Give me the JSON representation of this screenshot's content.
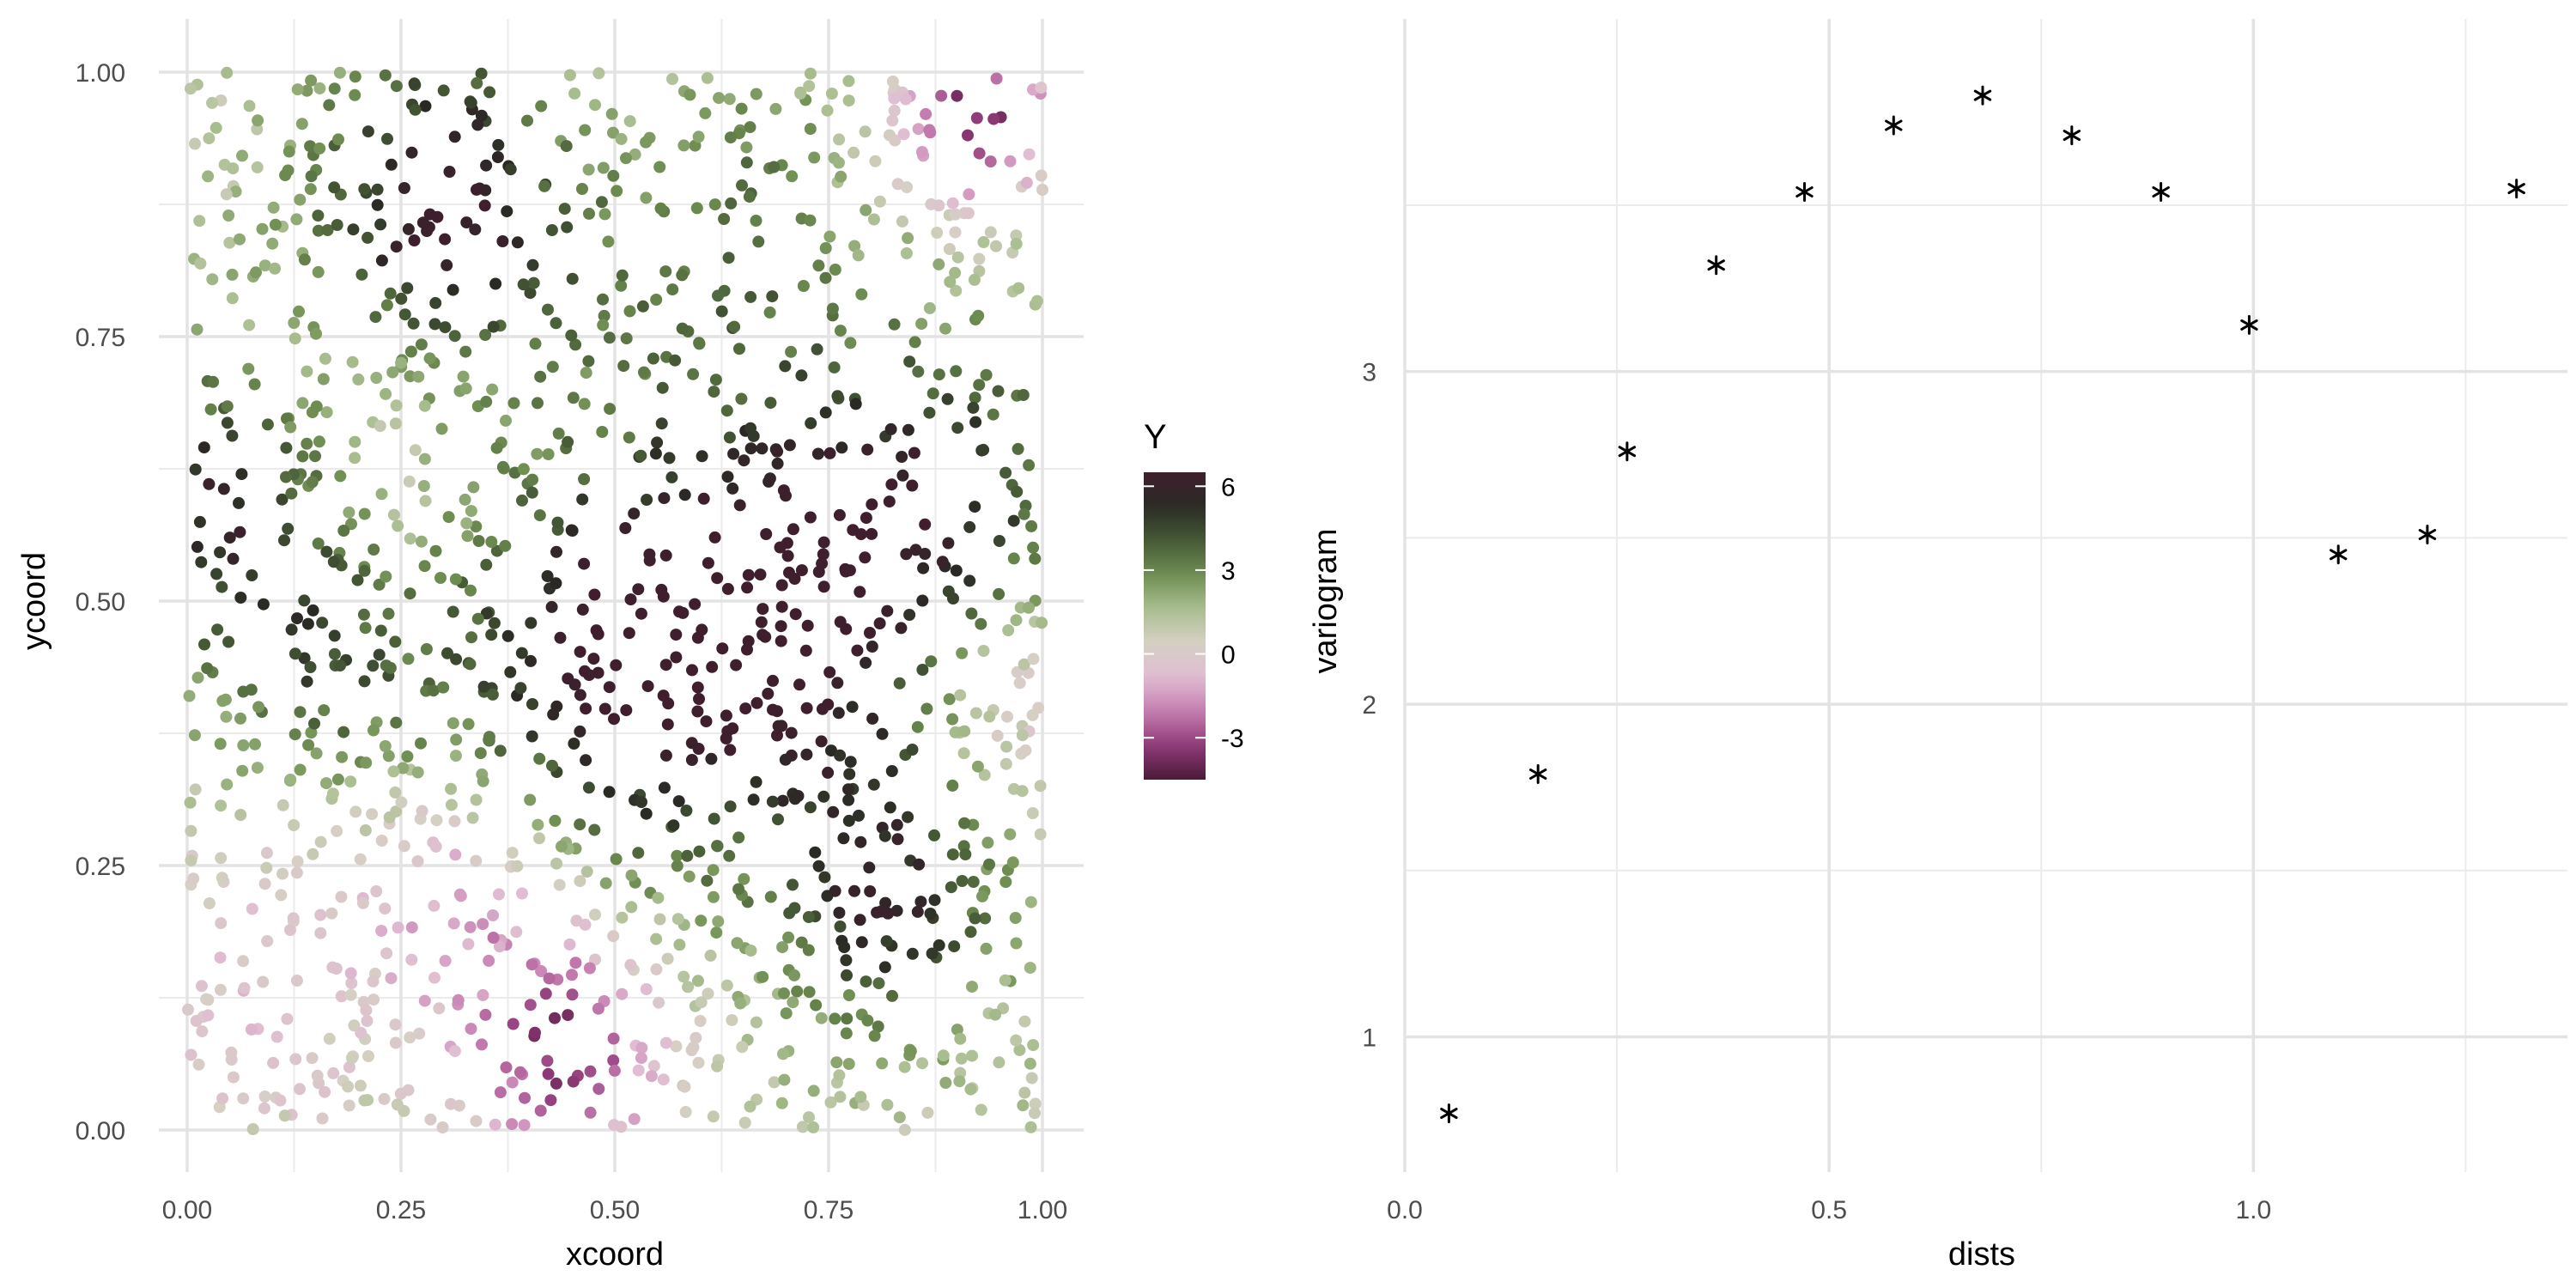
{
  "chart_data": [
    {
      "type": "scatter",
      "title": "",
      "xlabel": "xcoord",
      "ylabel": "ycoord",
      "xlim": [
        0,
        1
      ],
      "ylim": [
        0,
        1
      ],
      "xticks": [
        "0.00",
        "0.25",
        "0.50",
        "0.75",
        "1.00"
      ],
      "yticks": [
        "0.00",
        "0.25",
        "0.50",
        "0.75",
        "1.00"
      ],
      "grid": true,
      "color_variable": "Y",
      "colorbar": {
        "title": "Y",
        "range": [
          -4.5,
          6.5
        ],
        "ticks": [
          "6",
          "3",
          "0",
          "-3"
        ],
        "tick_values": [
          6,
          3,
          0,
          -3
        ],
        "colors": [
          "#4a1a38",
          "#8f3a78",
          "#c57db0",
          "#e0bdd2",
          "#d6d0c4",
          "#a9be90",
          "#6f8e52",
          "#465a36",
          "#2a2a25",
          "#3f1f2e"
        ],
        "placement": "right"
      },
      "field": {
        "description_points": 1500,
        "seed": 7,
        "hotspots": [
          {
            "x": 0.5,
            "y": 0.44,
            "r": 0.14,
            "value": 5.5
          },
          {
            "x": 0.72,
            "y": 0.5,
            "r": 0.13,
            "value": 5.0
          },
          {
            "x": 0.3,
            "y": 0.88,
            "r": 0.11,
            "value": 5.5
          },
          {
            "x": 0.82,
            "y": 0.22,
            "r": 0.09,
            "value": 4.5
          },
          {
            "x": 0.05,
            "y": 0.6,
            "r": 0.09,
            "value": 4.5
          },
          {
            "x": 0.9,
            "y": 0.6,
            "r": 0.11,
            "value": 3.5
          },
          {
            "x": 0.62,
            "y": 0.85,
            "r": 0.12,
            "value": 2.5
          },
          {
            "x": 0.15,
            "y": 0.45,
            "r": 0.1,
            "value": 3.0
          },
          {
            "x": 0.92,
            "y": 0.96,
            "r": 0.06,
            "value": -5.0
          },
          {
            "x": 0.44,
            "y": 0.08,
            "r": 0.08,
            "value": -4.5
          },
          {
            "x": 0.33,
            "y": 0.24,
            "r": 0.09,
            "value": -2.5
          },
          {
            "x": 0.2,
            "y": 0.62,
            "r": 0.09,
            "value": -1.5
          },
          {
            "x": 0.95,
            "y": 0.42,
            "r": 0.08,
            "value": -2.0
          },
          {
            "x": 0.08,
            "y": 0.15,
            "r": 0.12,
            "value": -1.5
          },
          {
            "x": 0.48,
            "y": 0.95,
            "r": 0.07,
            "value": -1.0
          }
        ]
      }
    },
    {
      "type": "scatter",
      "title": "",
      "xlabel": "dists",
      "ylabel": "variogram",
      "xlim": [
        0,
        1.37
      ],
      "ylim": [
        0.72,
        3.9
      ],
      "xticks": [
        "0.0",
        "0.5",
        "1.0"
      ],
      "xtick_values": [
        0,
        0.5,
        1.0
      ],
      "yticks": [
        "1",
        "2",
        "3"
      ],
      "ytick_values": [
        1,
        2,
        3
      ],
      "grid": true,
      "marker": "asterisk",
      "x": [
        0.052,
        0.157,
        0.262,
        0.367,
        0.471,
        0.576,
        0.681,
        0.786,
        0.891,
        0.995,
        1.1,
        1.205,
        1.31
      ],
      "y": [
        0.77,
        1.79,
        2.76,
        3.32,
        3.54,
        3.74,
        3.83,
        3.71,
        3.54,
        3.14,
        2.45,
        2.51,
        3.55
      ]
    }
  ]
}
